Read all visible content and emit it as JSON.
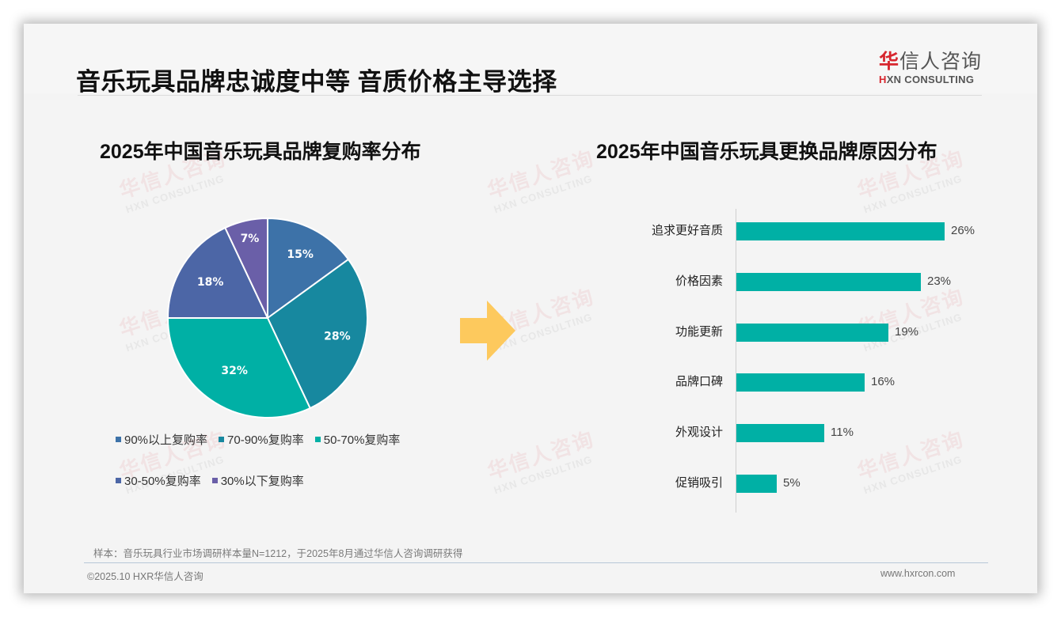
{
  "header": {
    "title": "音乐玩具品牌忠诚度中等 音质价格主导选择",
    "logo_cn_accent": "华",
    "logo_cn_rest": "信人咨询",
    "logo_en_accent": "H",
    "logo_en_rest": "XN CONSULTING"
  },
  "watermark": {
    "cn": "华信人咨询",
    "en": "HXN CONSULTING"
  },
  "colors": {
    "pie": [
      "#3d72a8",
      "#17889f",
      "#00b0a5",
      "#4c66a6",
      "#6a5fa8"
    ],
    "bar": "#00b0a5",
    "arrow": "#fdc95d",
    "accent_red": "#d7262e"
  },
  "chart_data": [
    {
      "type": "pie",
      "title": "2025年中国音乐玩具品牌复购率分布",
      "categories": [
        "90%以上复购率",
        "70-90%复购率",
        "50-70%复购率",
        "30-50%复购率",
        "30%以下复购率"
      ],
      "values": [
        15,
        28,
        32,
        18,
        7
      ],
      "labels": [
        "15%",
        "28%",
        "32%",
        "18%",
        "7%"
      ],
      "unit": "%",
      "legend_position": "bottom"
    },
    {
      "type": "bar",
      "orientation": "horizontal",
      "title": "2025年中国音乐玩具更换品牌原因分布",
      "categories": [
        "追求更好音质",
        "价格因素",
        "功能更新",
        "品牌口碑",
        "外观设计",
        "促销吸引"
      ],
      "values": [
        26,
        23,
        19,
        16,
        11,
        5
      ],
      "labels": [
        "26%",
        "23%",
        "19%",
        "16%",
        "11%",
        "5%"
      ],
      "unit": "%",
      "xlabel": "",
      "ylabel": "",
      "grid": false
    }
  ],
  "footer": {
    "note": "样本：音乐玩具行业市场调研样本量N=1212，于2025年8月通过华信人咨询调研获得",
    "copyright": "©2025.10 HXR华信人咨询",
    "website": "www.hxrcon.com"
  }
}
